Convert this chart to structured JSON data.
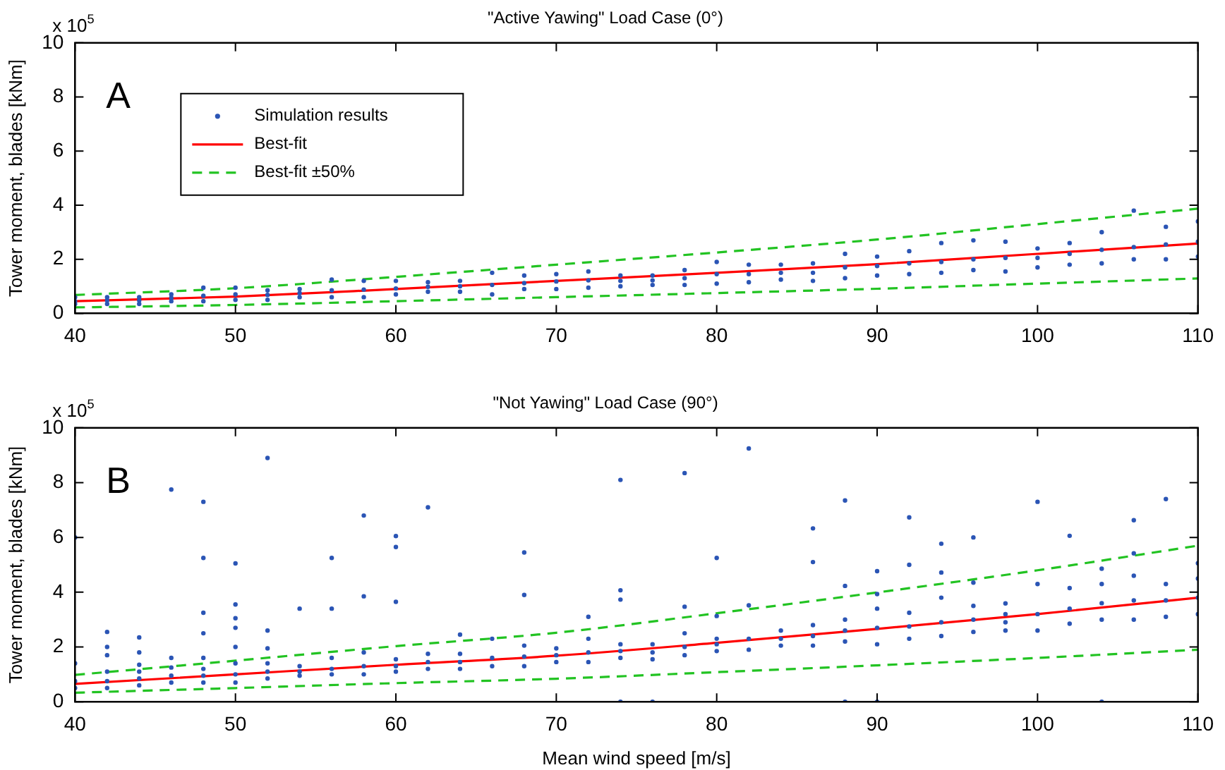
{
  "chart_data": [
    {
      "type": "scatter",
      "title": "\"Active Yawing\" Load Case (0°)",
      "ylabel": "Tower moment, blades [kNm]",
      "annotations": [
        "A",
        "x 10$^{5}$"
      ],
      "xlim": [
        40,
        110
      ],
      "xticks": [
        40,
        50,
        60,
        70,
        80,
        90,
        100,
        110
      ],
      "ylim": [
        0,
        10
      ],
      "yticks": [
        0,
        2,
        4,
        6,
        8,
        10
      ],
      "grid": false,
      "legend": "top left",
      "series": [
        {
          "type": "scatter",
          "name": "Simulation results",
          "color": "#2b55b5",
          "marker": "circle",
          "x": [
            40,
            40,
            40,
            42,
            42,
            42,
            44,
            44,
            44,
            46,
            46,
            46,
            48,
            48,
            48,
            50,
            50,
            50,
            52,
            52,
            52,
            54,
            54,
            54,
            56,
            56,
            56,
            58,
            58,
            58,
            60,
            60,
            60,
            62,
            62,
            62,
            64,
            64,
            64,
            66,
            66,
            66,
            68,
            68,
            68,
            70,
            70,
            70,
            72,
            72,
            72,
            74,
            74,
            74,
            76,
            76,
            76,
            78,
            78,
            78,
            80,
            80,
            80,
            82,
            82,
            82,
            84,
            84,
            84,
            86,
            86,
            86,
            88,
            88,
            88,
            90,
            90,
            90,
            92,
            92,
            92,
            94,
            94,
            94,
            96,
            96,
            96,
            98,
            98,
            98,
            100,
            100,
            100,
            102,
            102,
            102,
            104,
            104,
            104,
            106,
            106,
            106,
            108,
            108,
            108,
            110,
            110,
            110
          ],
          "values": [
            0.35,
            0.45,
            0.6,
            0.35,
            0.48,
            0.6,
            0.35,
            0.48,
            0.6,
            0.45,
            0.57,
            0.7,
            0.45,
            0.65,
            0.95,
            0.5,
            0.7,
            0.95,
            0.5,
            0.68,
            0.85,
            0.6,
            0.75,
            0.9,
            0.6,
            0.85,
            1.25,
            0.6,
            0.88,
            1.2,
            0.7,
            0.92,
            1.2,
            0.8,
            0.98,
            1.15,
            0.8,
            1.0,
            1.2,
            0.7,
            1.05,
            1.5,
            0.9,
            1.12,
            1.4,
            0.9,
            1.18,
            1.45,
            0.95,
            1.22,
            1.55,
            1.0,
            1.2,
            1.4,
            1.05,
            1.22,
            1.4,
            1.05,
            1.3,
            1.6,
            1.1,
            1.45,
            1.9,
            1.15,
            1.45,
            1.8,
            1.25,
            1.5,
            1.8,
            1.2,
            1.5,
            1.85,
            1.3,
            1.7,
            2.2,
            1.4,
            1.75,
            2.1,
            1.45,
            1.85,
            2.3,
            1.5,
            1.9,
            2.6,
            1.6,
            2.0,
            2.7,
            1.55,
            2.05,
            2.65,
            1.7,
            2.05,
            2.4,
            1.8,
            2.2,
            2.6,
            1.85,
            2.35,
            3.0,
            2.0,
            2.45,
            3.8,
            2.0,
            2.55,
            3.2,
            2.1,
            2.65,
            3.4
          ]
        },
        {
          "type": "line",
          "name": "Best-fit",
          "color": "#ff0000",
          "line_style": "solid",
          "x": [
            40,
            50,
            60,
            70,
            80,
            90,
            100,
            110
          ],
          "values": [
            0.45,
            0.62,
            0.9,
            1.2,
            1.5,
            1.82,
            2.2,
            2.58
          ]
        },
        {
          "type": "line",
          "name": "Best-fit ±50%",
          "color": "#22c322",
          "line_style": "dashed",
          "x": [
            40,
            50,
            60,
            70,
            80,
            90,
            100,
            110
          ],
          "values": [
            0.68,
            0.93,
            1.35,
            1.8,
            2.25,
            2.73,
            3.3,
            3.87
          ]
        },
        {
          "type": "line",
          "color": "#22c322",
          "line_style": "dashed",
          "x": [
            40,
            50,
            60,
            70,
            80,
            90,
            100,
            110
          ],
          "values": [
            0.22,
            0.31,
            0.45,
            0.6,
            0.75,
            0.91,
            1.1,
            1.29
          ]
        }
      ]
    },
    {
      "type": "scatter",
      "title": "\"Not Yawing\" Load Case (90°)",
      "xlabel": "Mean wind speed [m/s]",
      "ylabel": "Tower moment, blades [kNm]",
      "annotations": [
        "B",
        "x 10$^{5}$"
      ],
      "xlim": [
        40,
        110
      ],
      "xticks": [
        40,
        50,
        60,
        70,
        80,
        90,
        100,
        110
      ],
      "ylim": [
        0,
        10
      ],
      "yticks": [
        0,
        2,
        4,
        6,
        8,
        10
      ],
      "grid": false,
      "series": [
        {
          "type": "scatter",
          "color": "#2b55b5",
          "marker": "circle",
          "x": [
            40,
            40,
            40,
            40,
            42,
            42,
            42,
            42,
            42,
            42,
            44,
            44,
            44,
            44,
            44,
            44,
            46,
            46,
            46,
            46,
            46,
            48,
            48,
            48,
            48,
            48,
            48,
            48,
            48,
            50,
            50,
            50,
            50,
            50,
            50,
            50,
            50,
            52,
            52,
            52,
            52,
            52,
            52,
            54,
            54,
            54,
            54,
            56,
            56,
            56,
            56,
            56,
            58,
            58,
            58,
            58,
            58,
            60,
            60,
            60,
            60,
            60,
            60,
            62,
            62,
            62,
            62,
            64,
            64,
            64,
            64,
            66,
            66,
            66,
            68,
            68,
            68,
            68,
            68,
            70,
            70,
            70,
            72,
            72,
            72,
            72,
            74,
            74,
            74,
            74,
            74,
            74,
            74,
            76,
            76,
            76,
            76,
            78,
            78,
            78,
            78,
            78,
            80,
            80,
            80,
            80,
            80,
            82,
            82,
            82,
            82,
            84,
            84,
            84,
            86,
            86,
            86,
            86,
            86,
            88,
            88,
            88,
            88,
            88,
            88,
            90,
            90,
            90,
            90,
            90,
            90,
            92,
            92,
            92,
            92,
            92,
            94,
            94,
            94,
            94,
            94,
            96,
            96,
            96,
            96,
            96,
            98,
            98,
            98,
            98,
            100,
            100,
            100,
            100,
            102,
            102,
            102,
            102,
            104,
            104,
            104,
            104,
            104,
            106,
            106,
            106,
            106,
            106,
            108,
            108,
            108,
            108,
            110,
            110,
            110,
            110
          ],
          "values": [
            0.5,
            0.75,
            1.4,
            6.0,
            0.5,
            0.75,
            1.1,
            1.7,
            2.0,
            2.55,
            0.6,
            0.85,
            1.1,
            1.35,
            1.8,
            2.35,
            0.7,
            0.95,
            1.25,
            1.6,
            7.75,
            0.7,
            0.95,
            1.2,
            1.6,
            2.5,
            3.25,
            5.25,
            7.3,
            0.7,
            1.0,
            1.4,
            2.0,
            2.7,
            3.55,
            5.05,
            3.05,
            0.85,
            1.1,
            1.4,
            1.95,
            2.6,
            8.9,
            0.95,
            1.1,
            1.3,
            3.4,
            1.0,
            1.2,
            1.6,
            3.4,
            5.25,
            1.0,
            1.3,
            1.8,
            3.85,
            6.8,
            1.1,
            1.3,
            1.55,
            3.65,
            5.65,
            6.05,
            1.2,
            1.45,
            1.75,
            7.1,
            1.2,
            1.45,
            1.75,
            2.45,
            1.3,
            1.6,
            2.3,
            1.3,
            1.65,
            2.05,
            3.9,
            5.45,
            1.45,
            1.7,
            1.95,
            1.45,
            1.8,
            2.3,
            3.1,
            0,
            1.6,
            1.85,
            2.1,
            3.73,
            4.07,
            8.1,
            0,
            1.55,
            1.8,
            2.1,
            1.7,
            2.0,
            2.5,
            3.47,
            8.35,
            1.85,
            2.1,
            2.3,
            3.13,
            5.25,
            1.9,
            2.3,
            3.52,
            9.25,
            2.05,
            2.3,
            2.6,
            2.05,
            2.4,
            2.8,
            5.1,
            6.33,
            0,
            2.2,
            2.6,
            3.0,
            4.23,
            7.35,
            0,
            2.1,
            2.7,
            3.4,
            3.93,
            4.77,
            2.3,
            2.75,
            3.25,
            5.0,
            6.73,
            2.4,
            2.9,
            3.8,
            4.72,
            5.77,
            2.55,
            3.0,
            3.5,
            4.35,
            6.0,
            2.6,
            2.9,
            3.2,
            3.59,
            2.6,
            3.2,
            4.3,
            7.3,
            2.85,
            3.4,
            4.15,
            6.06,
            0,
            3.0,
            3.6,
            4.3,
            4.86,
            3.0,
            3.7,
            4.6,
            5.42,
            6.63,
            3.1,
            3.7,
            4.3,
            7.4,
            3.2,
            3.8,
            4.5,
            5.06
          ]
        },
        {
          "type": "line",
          "color": "#ff0000",
          "line_style": "solid",
          "x": [
            40,
            50,
            60,
            70,
            80,
            90,
            100,
            110
          ],
          "values": [
            0.65,
            1.0,
            1.35,
            1.68,
            2.15,
            2.66,
            3.2,
            3.8
          ]
        },
        {
          "type": "line",
          "color": "#22c322",
          "line_style": "dashed",
          "x": [
            40,
            50,
            60,
            70,
            80,
            90,
            100,
            110
          ],
          "values": [
            0.98,
            1.5,
            2.03,
            2.52,
            3.23,
            3.99,
            4.8,
            5.7
          ]
        },
        {
          "type": "line",
          "color": "#22c322",
          "line_style": "dashed",
          "x": [
            40,
            50,
            60,
            70,
            80,
            90,
            100,
            110
          ],
          "values": [
            0.33,
            0.5,
            0.68,
            0.84,
            1.08,
            1.33,
            1.6,
            1.9
          ]
        }
      ]
    }
  ]
}
